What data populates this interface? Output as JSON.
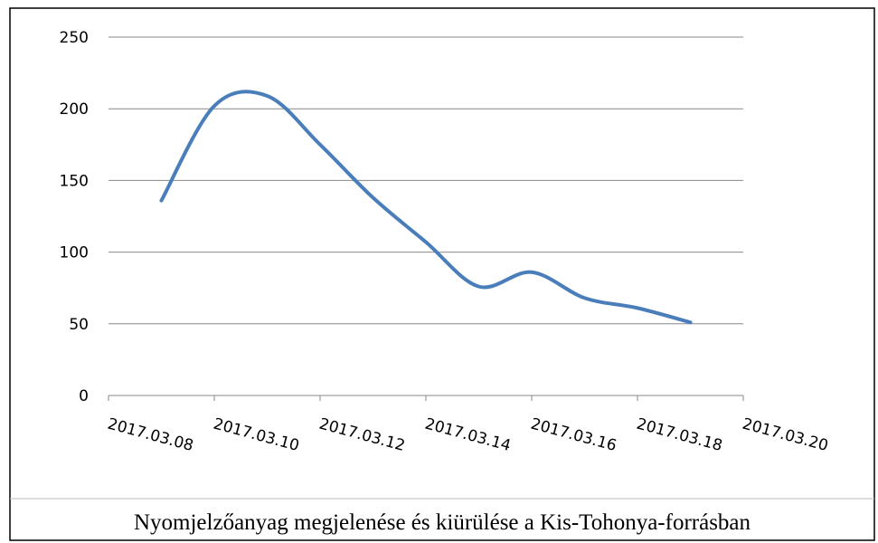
{
  "chart_data": {
    "type": "line",
    "caption": "Nyomjelzőanyag megjelenése és kiürülése a Kis-Tohonya-forrásban",
    "x": [
      "2017.03.09",
      "2017.03.10",
      "2017.03.11",
      "2017.03.12",
      "2017.03.13",
      "2017.03.14",
      "2017.03.15",
      "2017.03.16",
      "2017.03.17",
      "2017.03.18",
      "2017.03.19"
    ],
    "series": [
      {
        "color": "#4a7ebb",
        "values": [
          136,
          202,
          209,
          175,
          138,
          107,
          76,
          86,
          68,
          61,
          51
        ]
      }
    ],
    "smooth": true,
    "xlim": [
      "2017.03.08",
      "2017.03.20"
    ],
    "xticks": [
      "2017.03.08",
      "2017.03.10",
      "2017.03.12",
      "2017.03.14",
      "2017.03.16",
      "2017.03.18",
      "2017.03.20"
    ],
    "ylim": [
      0,
      250
    ],
    "yticks": [
      0,
      50,
      100,
      150,
      200,
      250
    ],
    "grid": true
  }
}
